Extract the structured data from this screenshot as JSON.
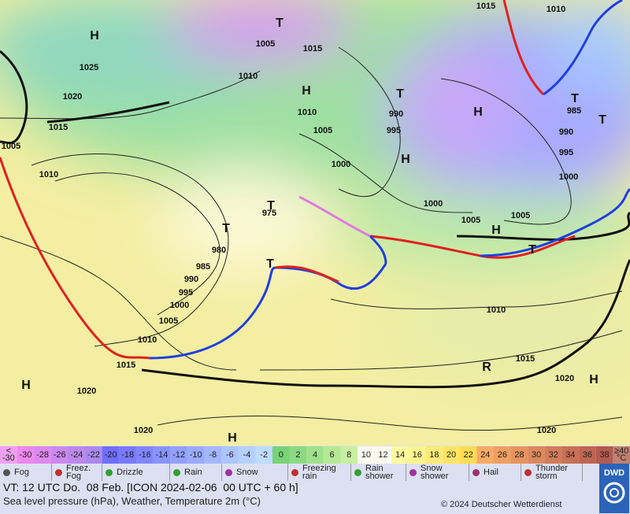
{
  "map": {
    "pressure_labels": [
      "1025",
      "1020",
      "1015",
      "1005",
      "1010",
      "1005",
      "1015",
      "1010",
      "1010",
      "1005",
      "990",
      "995",
      "1000",
      "975",
      "980",
      "985",
      "990",
      "995",
      "1000",
      "1005",
      "1010",
      "1015",
      "1020",
      "1020",
      "1015",
      "1010",
      "985",
      "990",
      "995",
      "1000",
      "1005",
      "1005",
      "1000",
      "1010",
      "1015",
      "1020",
      "1020"
    ],
    "systems": [
      "H",
      "T",
      "H",
      "T",
      "H",
      "H",
      "T",
      "T",
      "H",
      "T",
      "T",
      "T",
      "T",
      "H",
      "H",
      "H"
    ],
    "thunderstorm_symbol": "R"
  },
  "colorbar": {
    "low_end": [
      "<",
      "-30"
    ],
    "labels": [
      "-30",
      "-28",
      "-26",
      "-24",
      "-22",
      "-20",
      "-18",
      "-16",
      "-14",
      "-12",
      "-10",
      "-8",
      "-6",
      "-4",
      "-2",
      "0",
      "2",
      "4",
      "6",
      "8",
      "10",
      "12",
      "14",
      "16",
      "18",
      "20",
      "22",
      "24",
      "26",
      "28",
      "30",
      "32",
      "34",
      "36",
      "38"
    ],
    "high_end": [
      "≥40",
      "°C"
    ]
  },
  "legend": [
    "Fog",
    "Freez.\nFog",
    "Drizzle",
    "Rain",
    "Snow",
    "Freezing\nrain",
    "Rain\nshower",
    "Snow\nshower",
    "Hail",
    "Thunder\nstorm"
  ],
  "footer": {
    "valid_time": "VT: 12 UTC Do.  08 Feb. [ICON 2024-02-06  00 UTC + 60 h]",
    "description": "Sea level pressure (hPa), Weather, Temperature 2m (°C)",
    "copyright": "© 2024 Deutscher Wetterdienst",
    "logo": "DWD"
  }
}
